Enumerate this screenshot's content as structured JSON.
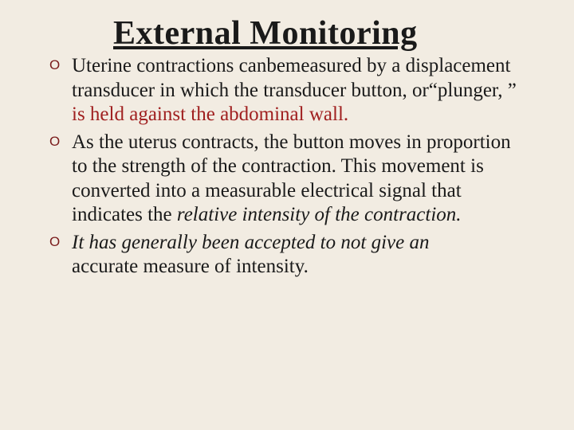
{
  "background_color": "#f2ece2",
  "bullet_marker_color": "#7a1b1b",
  "text_color": "#1a1a1a",
  "accent_red": "#a02020",
  "title_fontsize": 42,
  "body_fontsize": 25,
  "title": "External Monitoring",
  "bullets": [
    {
      "pre": "Uterine contractions canbemeasured by a displacement transducer in which the transducer button, or“plunger, ” ",
      "red": "is held against the abdominal wall.",
      "post": ""
    },
    {
      "pre": " As the uterus contracts, the button moves in proportion  to the strength of the contraction. This movement is converted into a measurable electrical signal that  indicates the ",
      "italic": "relative intensity of the contraction.",
      "post": ""
    },
    {
      "pre": " ",
      "italic": "It has generally been accepted to not give an",
      "post_nl": " accurate measure of intensity."
    }
  ]
}
